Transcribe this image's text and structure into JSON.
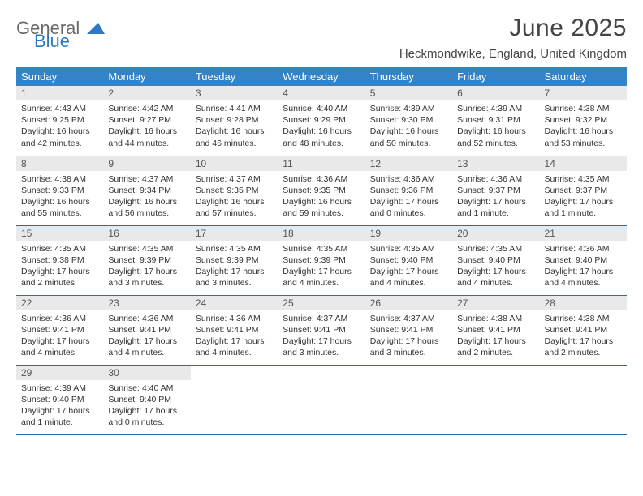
{
  "brand": {
    "general": "General",
    "blue": "Blue"
  },
  "title": "June 2025",
  "location": "Heckmondwike, England, United Kingdom",
  "colors": {
    "header_bg": "#3283c8",
    "header_text": "#ffffff",
    "daynum_bg": "#e9e9e9",
    "row_border": "#2b6aa5",
    "brand_gray": "#6a6a6a",
    "brand_blue": "#2f78c3"
  },
  "weekdays": [
    "Sunday",
    "Monday",
    "Tuesday",
    "Wednesday",
    "Thursday",
    "Friday",
    "Saturday"
  ],
  "weeks": [
    [
      {
        "n": "1",
        "sunrise": "Sunrise: 4:43 AM",
        "sunset": "Sunset: 9:25 PM",
        "daylight": "Daylight: 16 hours and 42 minutes."
      },
      {
        "n": "2",
        "sunrise": "Sunrise: 4:42 AM",
        "sunset": "Sunset: 9:27 PM",
        "daylight": "Daylight: 16 hours and 44 minutes."
      },
      {
        "n": "3",
        "sunrise": "Sunrise: 4:41 AM",
        "sunset": "Sunset: 9:28 PM",
        "daylight": "Daylight: 16 hours and 46 minutes."
      },
      {
        "n": "4",
        "sunrise": "Sunrise: 4:40 AM",
        "sunset": "Sunset: 9:29 PM",
        "daylight": "Daylight: 16 hours and 48 minutes."
      },
      {
        "n": "5",
        "sunrise": "Sunrise: 4:39 AM",
        "sunset": "Sunset: 9:30 PM",
        "daylight": "Daylight: 16 hours and 50 minutes."
      },
      {
        "n": "6",
        "sunrise": "Sunrise: 4:39 AM",
        "sunset": "Sunset: 9:31 PM",
        "daylight": "Daylight: 16 hours and 52 minutes."
      },
      {
        "n": "7",
        "sunrise": "Sunrise: 4:38 AM",
        "sunset": "Sunset: 9:32 PM",
        "daylight": "Daylight: 16 hours and 53 minutes."
      }
    ],
    [
      {
        "n": "8",
        "sunrise": "Sunrise: 4:38 AM",
        "sunset": "Sunset: 9:33 PM",
        "daylight": "Daylight: 16 hours and 55 minutes."
      },
      {
        "n": "9",
        "sunrise": "Sunrise: 4:37 AM",
        "sunset": "Sunset: 9:34 PM",
        "daylight": "Daylight: 16 hours and 56 minutes."
      },
      {
        "n": "10",
        "sunrise": "Sunrise: 4:37 AM",
        "sunset": "Sunset: 9:35 PM",
        "daylight": "Daylight: 16 hours and 57 minutes."
      },
      {
        "n": "11",
        "sunrise": "Sunrise: 4:36 AM",
        "sunset": "Sunset: 9:35 PM",
        "daylight": "Daylight: 16 hours and 59 minutes."
      },
      {
        "n": "12",
        "sunrise": "Sunrise: 4:36 AM",
        "sunset": "Sunset: 9:36 PM",
        "daylight": "Daylight: 17 hours and 0 minutes."
      },
      {
        "n": "13",
        "sunrise": "Sunrise: 4:36 AM",
        "sunset": "Sunset: 9:37 PM",
        "daylight": "Daylight: 17 hours and 1 minute."
      },
      {
        "n": "14",
        "sunrise": "Sunrise: 4:35 AM",
        "sunset": "Sunset: 9:37 PM",
        "daylight": "Daylight: 17 hours and 1 minute."
      }
    ],
    [
      {
        "n": "15",
        "sunrise": "Sunrise: 4:35 AM",
        "sunset": "Sunset: 9:38 PM",
        "daylight": "Daylight: 17 hours and 2 minutes."
      },
      {
        "n": "16",
        "sunrise": "Sunrise: 4:35 AM",
        "sunset": "Sunset: 9:39 PM",
        "daylight": "Daylight: 17 hours and 3 minutes."
      },
      {
        "n": "17",
        "sunrise": "Sunrise: 4:35 AM",
        "sunset": "Sunset: 9:39 PM",
        "daylight": "Daylight: 17 hours and 3 minutes."
      },
      {
        "n": "18",
        "sunrise": "Sunrise: 4:35 AM",
        "sunset": "Sunset: 9:39 PM",
        "daylight": "Daylight: 17 hours and 4 minutes."
      },
      {
        "n": "19",
        "sunrise": "Sunrise: 4:35 AM",
        "sunset": "Sunset: 9:40 PM",
        "daylight": "Daylight: 17 hours and 4 minutes."
      },
      {
        "n": "20",
        "sunrise": "Sunrise: 4:35 AM",
        "sunset": "Sunset: 9:40 PM",
        "daylight": "Daylight: 17 hours and 4 minutes."
      },
      {
        "n": "21",
        "sunrise": "Sunrise: 4:36 AM",
        "sunset": "Sunset: 9:40 PM",
        "daylight": "Daylight: 17 hours and 4 minutes."
      }
    ],
    [
      {
        "n": "22",
        "sunrise": "Sunrise: 4:36 AM",
        "sunset": "Sunset: 9:41 PM",
        "daylight": "Daylight: 17 hours and 4 minutes."
      },
      {
        "n": "23",
        "sunrise": "Sunrise: 4:36 AM",
        "sunset": "Sunset: 9:41 PM",
        "daylight": "Daylight: 17 hours and 4 minutes."
      },
      {
        "n": "24",
        "sunrise": "Sunrise: 4:36 AM",
        "sunset": "Sunset: 9:41 PM",
        "daylight": "Daylight: 17 hours and 4 minutes."
      },
      {
        "n": "25",
        "sunrise": "Sunrise: 4:37 AM",
        "sunset": "Sunset: 9:41 PM",
        "daylight": "Daylight: 17 hours and 3 minutes."
      },
      {
        "n": "26",
        "sunrise": "Sunrise: 4:37 AM",
        "sunset": "Sunset: 9:41 PM",
        "daylight": "Daylight: 17 hours and 3 minutes."
      },
      {
        "n": "27",
        "sunrise": "Sunrise: 4:38 AM",
        "sunset": "Sunset: 9:41 PM",
        "daylight": "Daylight: 17 hours and 2 minutes."
      },
      {
        "n": "28",
        "sunrise": "Sunrise: 4:38 AM",
        "sunset": "Sunset: 9:41 PM",
        "daylight": "Daylight: 17 hours and 2 minutes."
      }
    ],
    [
      {
        "n": "29",
        "sunrise": "Sunrise: 4:39 AM",
        "sunset": "Sunset: 9:40 PM",
        "daylight": "Daylight: 17 hours and 1 minute."
      },
      {
        "n": "30",
        "sunrise": "Sunrise: 4:40 AM",
        "sunset": "Sunset: 9:40 PM",
        "daylight": "Daylight: 17 hours and 0 minutes."
      },
      null,
      null,
      null,
      null,
      null
    ]
  ]
}
